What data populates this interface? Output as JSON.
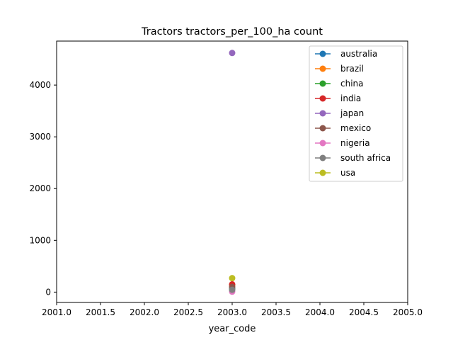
{
  "chart_data": {
    "type": "line",
    "title": "Tractors tractors_per_100_ha count",
    "xlabel": "year_code",
    "ylabel": "",
    "xlim": [
      2001.0,
      2005.0
    ],
    "ylim": [
      -200,
      4850
    ],
    "x_ticks": [
      2001.0,
      2001.5,
      2002.0,
      2002.5,
      2003.0,
      2003.5,
      2004.0,
      2004.5,
      2005.0
    ],
    "x_tick_labels": [
      "2001.0",
      "2001.5",
      "2002.0",
      "2002.5",
      "2003.0",
      "2003.5",
      "2004.0",
      "2004.5",
      "2005.0"
    ],
    "y_ticks": [
      0,
      1000,
      2000,
      3000,
      4000
    ],
    "y_tick_labels": [
      "0",
      "1000",
      "2000",
      "3000",
      "4000"
    ],
    "grid": false,
    "legend_position": "top-right",
    "series": [
      {
        "name": "australia",
        "color": "#1f77b4",
        "x": [
          2003
        ],
        "values": [
          65
        ]
      },
      {
        "name": "brazil",
        "color": "#ff7f0e",
        "x": [
          2003
        ],
        "values": [
          135
        ]
      },
      {
        "name": "china",
        "color": "#2ca02c",
        "x": [
          2003
        ],
        "values": [
          55
        ]
      },
      {
        "name": "india",
        "color": "#d62728",
        "x": [
          2003
        ],
        "values": [
          150
        ]
      },
      {
        "name": "japan",
        "color": "#9467bd",
        "x": [
          2003
        ],
        "values": [
          4620
        ]
      },
      {
        "name": "mexico",
        "color": "#8c564b",
        "x": [
          2003
        ],
        "values": [
          100
        ]
      },
      {
        "name": "nigeria",
        "color": "#e377c2",
        "x": [
          2003
        ],
        "values": [
          8
        ]
      },
      {
        "name": "south africa",
        "color": "#7f7f7f",
        "x": [
          2003
        ],
        "values": [
          45
        ]
      },
      {
        "name": "usa",
        "color": "#bcbd22",
        "x": [
          2003
        ],
        "values": [
          270
        ]
      }
    ]
  }
}
